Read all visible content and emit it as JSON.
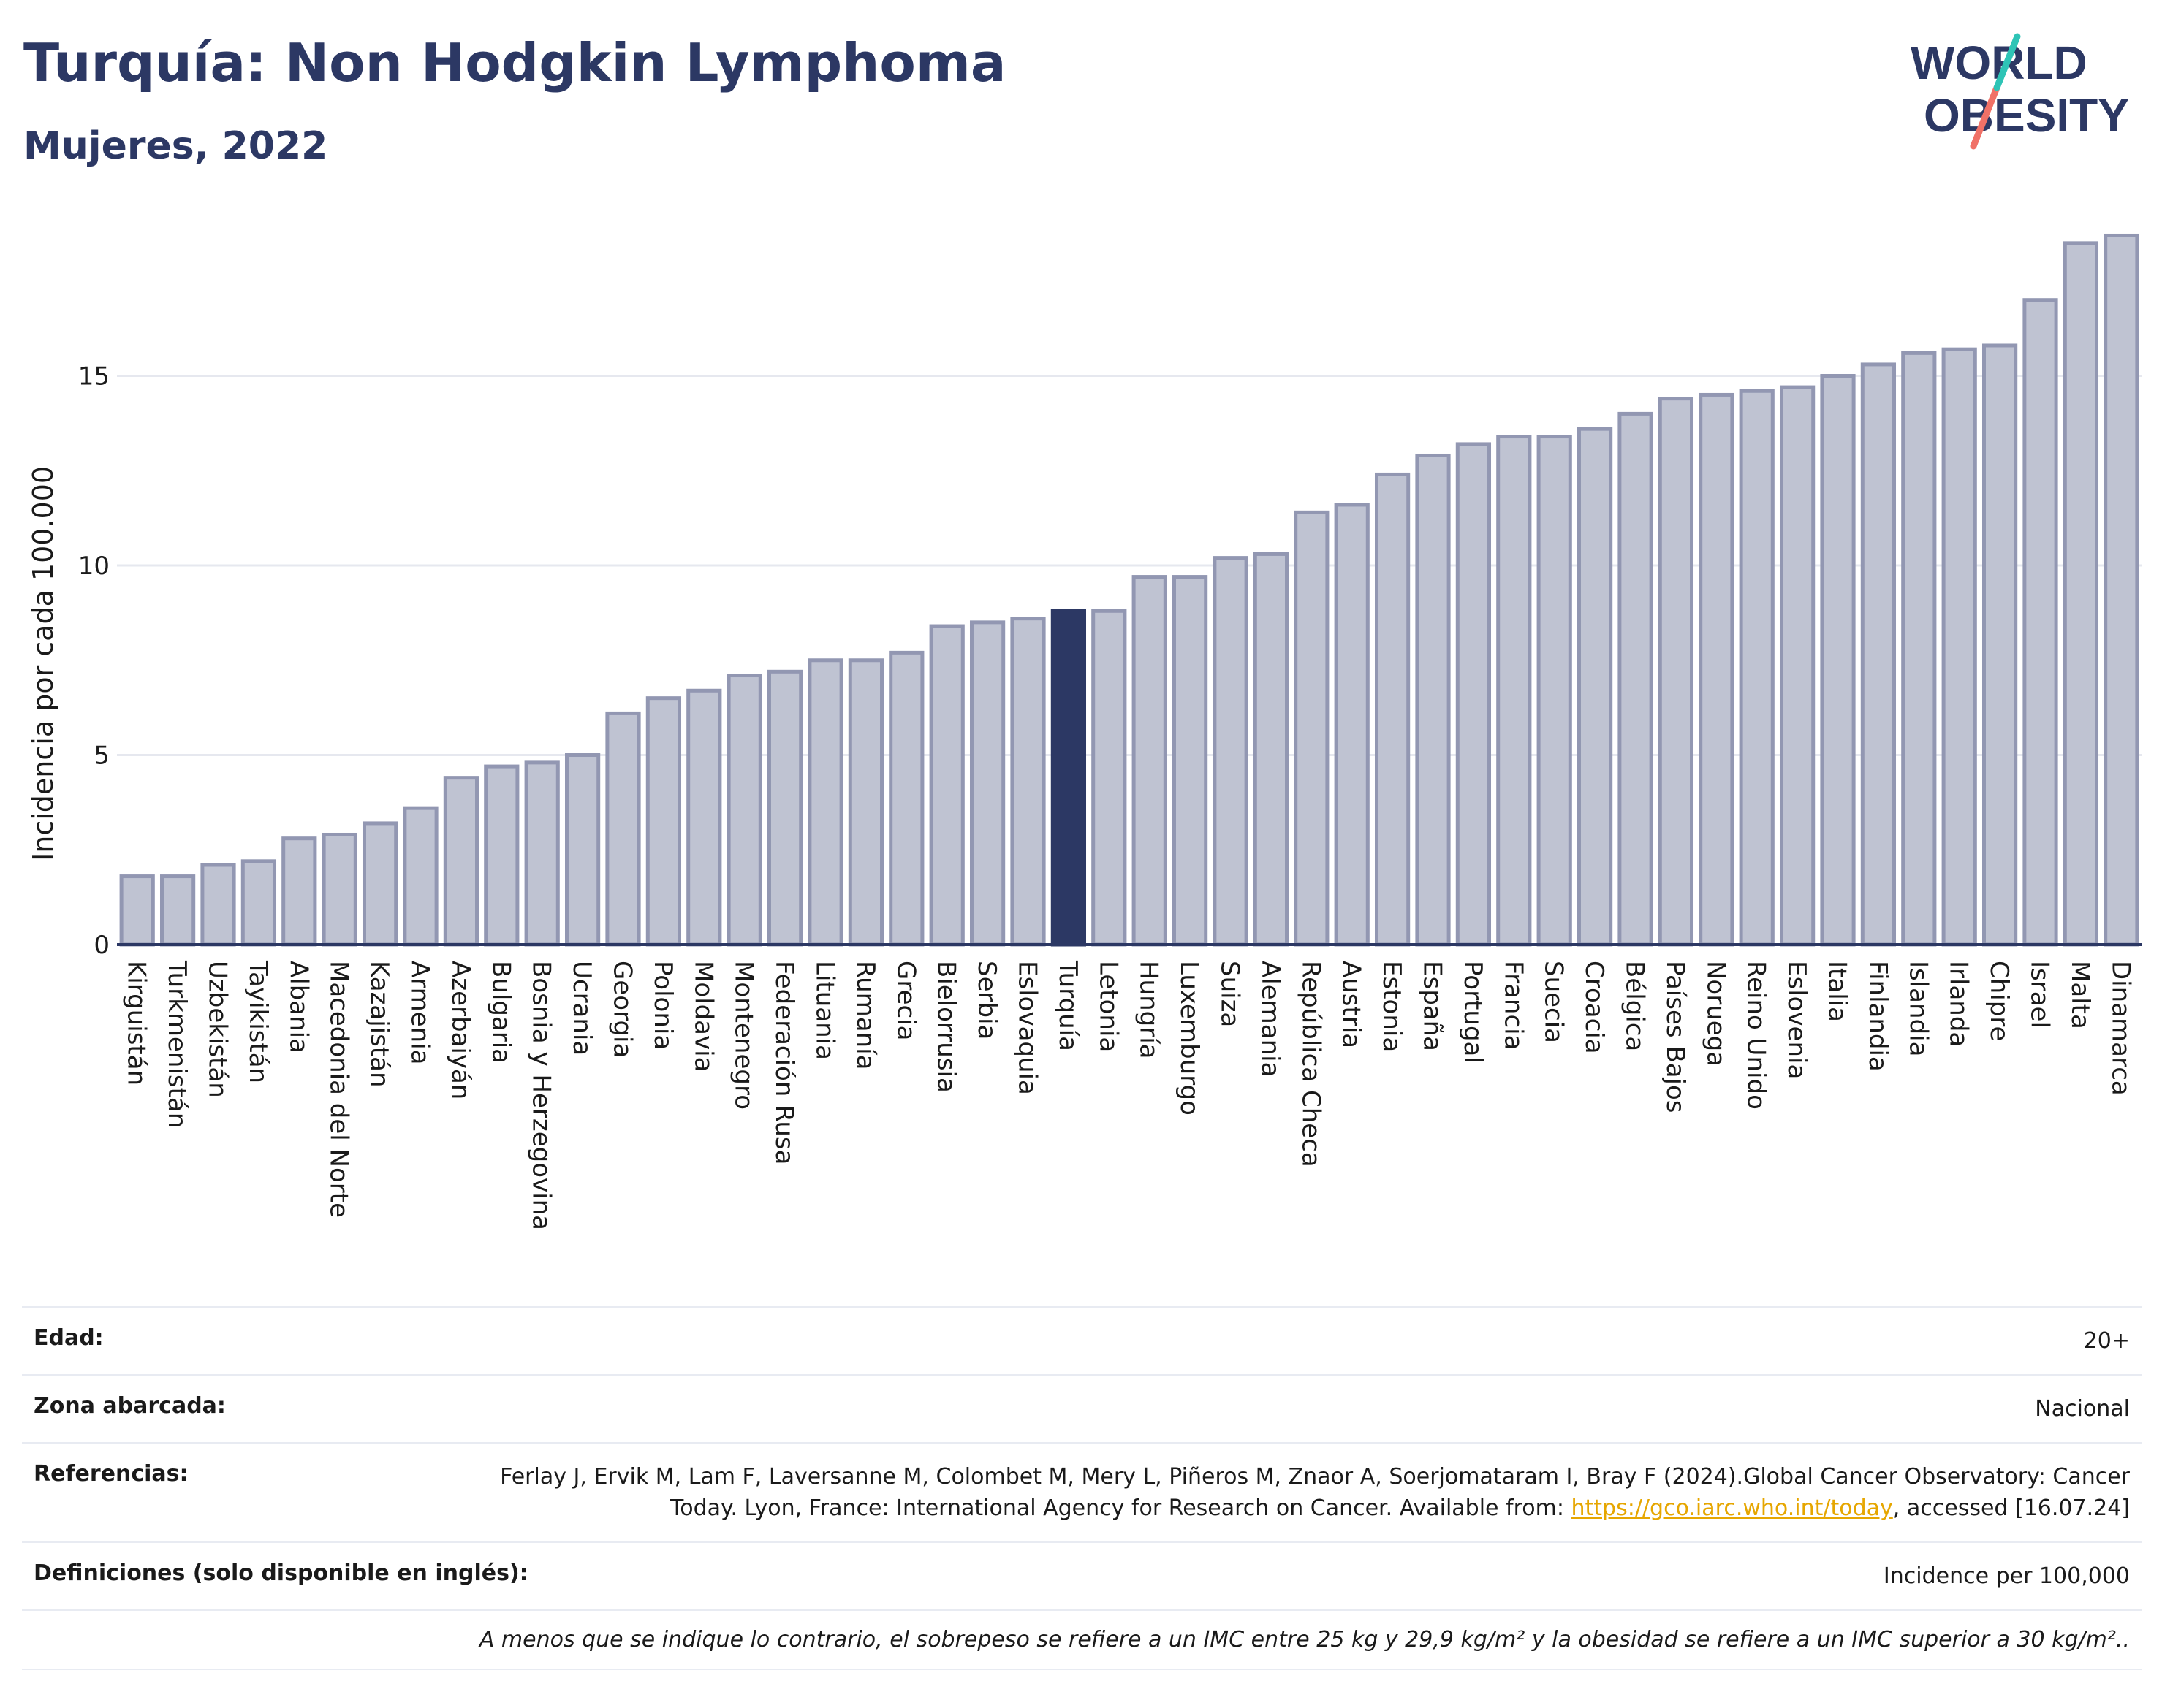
{
  "header": {
    "title": "Turquía: Non Hodgkin Lymphoma",
    "subtitle": "Mujeres, 2022"
  },
  "logo": {
    "line1": "WORLD",
    "line2": "OBESITY"
  },
  "colors": {
    "bar": "#bfc3d2",
    "bar_border": "#9297b2",
    "highlight": "#2c3864",
    "axis": "#2c3864",
    "grid": "#e6e8ef",
    "logo_teal": "#2ec4b6",
    "logo_coral": "#f07167"
  },
  "chart_data": {
    "type": "bar",
    "ylabel": "Incidencia por cada 100.000",
    "ylim": [
      0,
      19.5
    ],
    "yticks": [
      0,
      5,
      10,
      15
    ],
    "highlight": "Turquía",
    "categories": [
      "Kirguistán",
      "Turkmenistán",
      "Uzbekistán",
      "Tayikistán",
      "Albania",
      "Macedonia del Norte",
      "Kazajistán",
      "Armenia",
      "Azerbaiyán",
      "Bulgaria",
      "Bosnia y Herzegovina",
      "Ucrania",
      "Georgia",
      "Polonia",
      "Moldavia",
      "Montenegro",
      "Federación Rusa",
      "Lituania",
      "Rumanía",
      "Grecia",
      "Bielorrusia",
      "Serbia",
      "Eslovaquia",
      "Turquía",
      "Letonia",
      "Hungría",
      "Luxemburgo",
      "Suiza",
      "Alemania",
      "República Checa",
      "Austria",
      "Estonia",
      "España",
      "Portugal",
      "Francia",
      "Suecia",
      "Croacia",
      "Bélgica",
      "Países Bajos",
      "Noruega",
      "Reino Unido",
      "Eslovenia",
      "Italia",
      "Finlandia",
      "Islandia",
      "Irlanda",
      "Chipre",
      "Israel",
      "Malta",
      "Dinamarca"
    ],
    "values": [
      1.8,
      1.8,
      2.1,
      2.2,
      2.8,
      2.9,
      3.2,
      3.6,
      4.4,
      4.7,
      4.8,
      5.0,
      6.1,
      6.5,
      6.7,
      7.1,
      7.2,
      7.5,
      7.5,
      7.7,
      8.4,
      8.5,
      8.6,
      8.8,
      8.8,
      9.7,
      9.7,
      10.2,
      10.3,
      11.4,
      11.6,
      12.4,
      12.9,
      13.2,
      13.4,
      13.4,
      13.6,
      14.0,
      14.4,
      14.5,
      14.6,
      14.7,
      15.0,
      15.3,
      15.6,
      15.7,
      15.8,
      17.0,
      18.5,
      18.7
    ]
  },
  "meta": {
    "edad_label": "Edad:",
    "edad_value": "20+",
    "zona_label": "Zona abarcada:",
    "zona_value": "Nacional",
    "ref_label": "Referencias:",
    "ref_text_1": "Ferlay J, Ervik M, Lam F, Laversanne M, Colombet M, Mery L, Piñeros M, Znaor A, Soerjomataram I, Bray F (2024).Global Cancer Observatory: Cancer Today. Lyon, France: International Agency for Research on Cancer. Available from: ",
    "ref_link": "https://gco.iarc.who.int/today",
    "ref_text_2": ", accessed [16.07.24]",
    "def_label": "Definiciones (solo disponible en inglés):",
    "def_value": "Incidence per 100,000",
    "note": "A menos que se indique lo contrario, el sobrepeso se refiere a un IMC entre 25 kg y 29,9 kg/m² y la obesidad se refiere a un IMC superior a 30 kg/m².."
  }
}
